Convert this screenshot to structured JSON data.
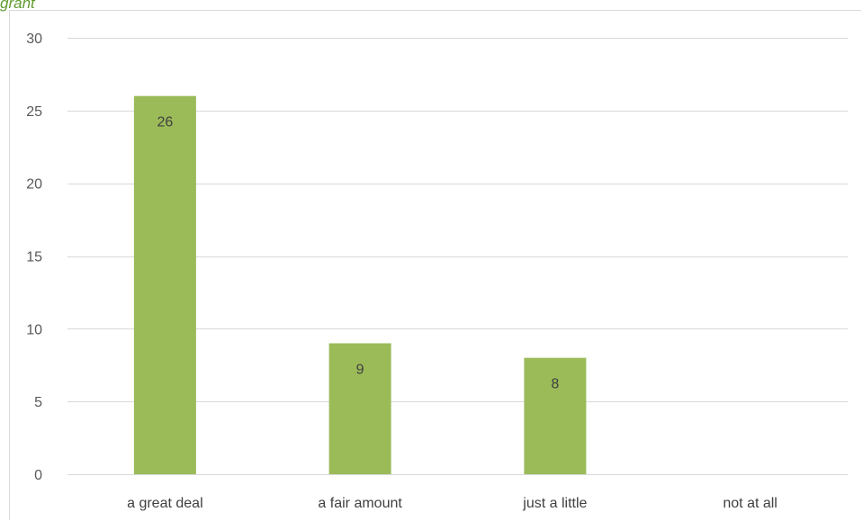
{
  "header_fragment": "grant",
  "chart_data": {
    "type": "bar",
    "categories": [
      "a great deal",
      "a fair amount",
      "just a little",
      "not at all"
    ],
    "values": [
      26,
      9,
      8,
      0
    ],
    "data_labels": [
      "26",
      "9",
      "8",
      ""
    ],
    "yticks": [
      0,
      5,
      10,
      15,
      20,
      25,
      30
    ],
    "ylim": [
      0,
      30
    ],
    "grid": true,
    "legend": "none",
    "bar_color": "#9bbb59",
    "grid_color": "#d9d9d9",
    "header_color": "#5f9a2e"
  }
}
